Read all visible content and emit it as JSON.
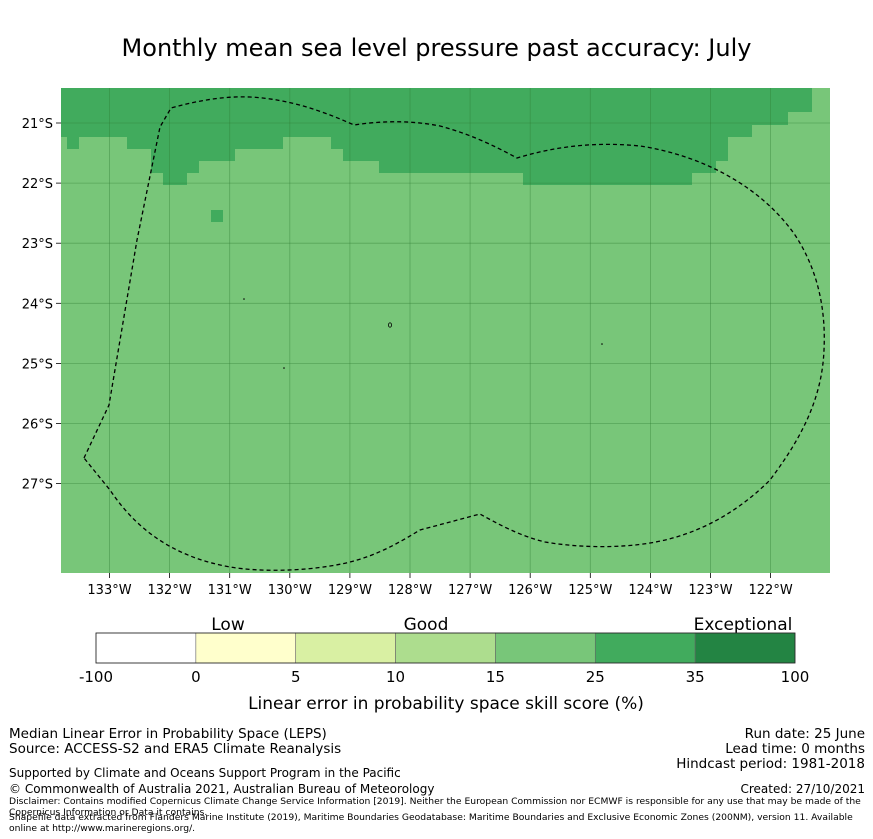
{
  "title": "Monthly mean sea level pressure past accuracy: July",
  "map": {
    "lat_labels": [
      "21°S",
      "22°S",
      "23°S",
      "24°S",
      "25°S",
      "26°S",
      "27°S"
    ],
    "lon_labels": [
      "133°W",
      "132°W",
      "131°W",
      "130°W",
      "129°W",
      "128°W",
      "127°W",
      "126°W",
      "125°W",
      "124°W",
      "123°W",
      "122°W"
    ],
    "colors": {
      "band_25_35": "#41ab5d",
      "band_15_25": "#78c679",
      "band_10_15": "#addd8e",
      "band_5_10": "#d9f0a3",
      "band_0_5": "#ffffcc",
      "band_neg": "#ffffff",
      "band_35_100": "#238443"
    }
  },
  "colorbar": {
    "category_labels": [
      "Low",
      "Good",
      "Exceptional"
    ],
    "tick_labels": [
      "-100",
      "0",
      "5",
      "10",
      "15",
      "25",
      "35",
      "100"
    ],
    "label": "Linear error in probability space skill score (%)"
  },
  "footer": {
    "method": "Median Linear Error in Probability Space (LEPS)",
    "source": "Source: ACCESS-S2 and ERA5 Climate Reanalysis",
    "run_date": "Run date: 25 June",
    "lead_time": "Lead time: 0 months",
    "hindcast": "Hindcast period: 1981-2018",
    "support": "Supported by Climate and Oceans Support Program in the Pacific",
    "copyright": "© Commonwealth of Australia 2021, Australian Bureau of Meteorology",
    "created": "Created: 27/10/2021",
    "disclaimer": "Disclaimer: Contains modified Copernicus Climate Change Service Information [2019]. Neither the European Commission nor ECMWF is responsible for any use that may be made of the Copernicus Information or Data it contains.",
    "shapefile": "Shapefile data extracted from Flanders Marine Institute (2019), Maritime Boundaries Geodatabase: Maritime Boundaries and Exclusive Economic Zones (200NM), version 11. Available online at http://www.marineregions.org/."
  }
}
